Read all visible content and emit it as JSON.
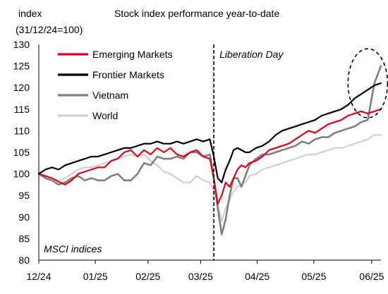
{
  "chart_data": {
    "type": "line",
    "title": "Stock index performance year-to-date",
    "ylabel_line1": "index",
    "ylabel_line2": "(31/12/24=100)",
    "ylim": [
      80,
      130
    ],
    "yticks": [
      80,
      85,
      90,
      95,
      100,
      105,
      110,
      115,
      120,
      125,
      130
    ],
    "xlim": [
      0,
      26
    ],
    "x_tick_labels": [
      {
        "x": 0,
        "label": "12/24"
      },
      {
        "x": 4.3,
        "label": "01/25"
      },
      {
        "x": 8.3,
        "label": "02/25"
      },
      {
        "x": 12.3,
        "label": "03/25"
      },
      {
        "x": 16.6,
        "label": "04/25"
      },
      {
        "x": 20.9,
        "label": "05/25"
      },
      {
        "x": 25.3,
        "label": "06/25"
      }
    ],
    "event_line": {
      "x": 13.3,
      "label": "Liberation Day"
    },
    "footnote": "MSCI indices",
    "highlight": {
      "cx": 25.0,
      "cy": 121,
      "rx": 1.5,
      "ry": 8
    },
    "legend_placement": "top-left",
    "grid": false,
    "series": [
      {
        "name": "Emerging Markets",
        "color": "#e60012",
        "width": 2.2,
        "x": [
          0,
          0.5,
          1,
          1.5,
          2,
          2.5,
          3,
          3.5,
          4,
          4.5,
          5,
          5.5,
          6,
          6.5,
          7,
          7.5,
          8,
          8.5,
          9,
          9.5,
          10,
          10.5,
          11,
          11.5,
          12,
          12.5,
          13,
          13.3,
          13.6,
          13.9,
          14.2,
          14.5,
          14.8,
          15.1,
          15.4,
          15.7,
          16,
          16.5,
          17,
          17.5,
          18,
          18.5,
          19,
          19.5,
          20,
          20.5,
          21,
          21.5,
          22,
          22.5,
          23,
          23.5,
          24,
          24.5,
          25,
          25.5,
          26
        ],
        "y": [
          100,
          99.5,
          99,
          98.2,
          97.5,
          98.5,
          100,
          100.5,
          101,
          101.5,
          101.5,
          103,
          103.5,
          105,
          105.5,
          104,
          105.5,
          104.5,
          106,
          105,
          106,
          104.5,
          104,
          105,
          105.5,
          104,
          103.5,
          99,
          93,
          95,
          98,
          97,
          99,
          101,
          102,
          101.5,
          102.5,
          103,
          104,
          105.5,
          106,
          106.5,
          107,
          108,
          109,
          110,
          109.5,
          110.5,
          111.5,
          112,
          112.5,
          113.5,
          114,
          114.5,
          114,
          114.5,
          115
        ]
      },
      {
        "name": "Frontier Markets",
        "color": "#000000",
        "width": 2.2,
        "x": [
          0,
          0.5,
          1,
          1.5,
          2,
          2.5,
          3,
          3.5,
          4,
          4.5,
          5,
          5.5,
          6,
          6.5,
          7,
          7.5,
          8,
          8.5,
          9,
          9.5,
          10,
          10.5,
          11,
          11.5,
          12,
          12.5,
          13,
          13.3,
          13.6,
          13.9,
          14.2,
          14.5,
          14.8,
          15.1,
          15.4,
          15.7,
          16,
          16.5,
          17,
          17.5,
          18,
          18.5,
          19,
          19.5,
          20,
          20.5,
          21,
          21.5,
          22,
          22.5,
          23,
          23.5,
          24,
          24.5,
          25,
          25.5,
          26
        ],
        "y": [
          100,
          101,
          101.5,
          101,
          102,
          102.5,
          103,
          103.5,
          104,
          104,
          104.5,
          105,
          105.5,
          106,
          106,
          106.5,
          107,
          107,
          107.5,
          107,
          107,
          107.5,
          107,
          107.5,
          108,
          107.5,
          108,
          104,
          99,
          98,
          101,
          103,
          105.5,
          106,
          105.5,
          105,
          105,
          106,
          106.5,
          107.5,
          109,
          110,
          110.5,
          111,
          111.5,
          112,
          112.5,
          113.5,
          114,
          114.5,
          115,
          116,
          117.5,
          118.5,
          119.5,
          120.5,
          121
        ]
      },
      {
        "name": "Vietnam",
        "color": "#7f7f7f",
        "width": 2.6,
        "x": [
          0,
          0.5,
          1,
          1.5,
          2,
          2.5,
          3,
          3.5,
          4,
          4.5,
          5,
          5.5,
          6,
          6.5,
          7,
          7.5,
          8,
          8.5,
          9,
          9.5,
          10,
          10.5,
          11,
          11.5,
          12,
          12.5,
          13,
          13.3,
          13.6,
          13.9,
          14.2,
          14.5,
          14.8,
          15.1,
          15.4,
          15.7,
          16,
          16.5,
          17,
          17.5,
          18,
          18.5,
          19,
          19.5,
          20,
          20.5,
          21,
          21.5,
          22,
          22.5,
          23,
          23.5,
          24,
          24.5,
          25,
          25.5,
          26
        ],
        "y": [
          100,
          99,
          98.5,
          97.5,
          98,
          99,
          99.5,
          98.5,
          99,
          98.5,
          98.5,
          99.5,
          100,
          98.5,
          98.5,
          100,
          102.5,
          102,
          104,
          103.5,
          103.5,
          104,
          103.5,
          105,
          105,
          104,
          104.5,
          99,
          92,
          86,
          89.5,
          95,
          99,
          99,
          97,
          99.5,
          102,
          103.5,
          104.5,
          104.5,
          105,
          105.5,
          106,
          106.5,
          107.5,
          107,
          108,
          108.5,
          108.5,
          109.5,
          110,
          110.5,
          111,
          112,
          112.5,
          121,
          125
        ]
      },
      {
        "name": "World",
        "color": "#d0d0d0",
        "width": 2.2,
        "x": [
          0,
          0.5,
          1,
          1.5,
          2,
          2.5,
          3,
          3.5,
          4,
          4.5,
          5,
          5.5,
          6,
          6.5,
          7,
          7.5,
          8,
          8.5,
          9,
          9.5,
          10,
          10.5,
          11,
          11.5,
          12,
          12.5,
          13,
          13.3,
          13.6,
          13.9,
          14.2,
          14.5,
          14.8,
          15.1,
          15.4,
          15.7,
          16,
          16.5,
          17,
          17.5,
          18,
          18.5,
          19,
          19.5,
          20,
          20.5,
          21,
          21.5,
          22,
          22.5,
          23,
          23.5,
          24,
          24.5,
          25,
          25.5,
          26
        ],
        "y": [
          100,
          99.5,
          99,
          98.5,
          99,
          100,
          101,
          101.5,
          101.5,
          102,
          102.5,
          103,
          103.5,
          104,
          104.5,
          104,
          104.5,
          103,
          102,
          100.5,
          100,
          99,
          98,
          98,
          99.5,
          98.5,
          98,
          96,
          93,
          89,
          92,
          94,
          96,
          97,
          97.5,
          98,
          99.5,
          100,
          101,
          101.5,
          102,
          102.5,
          103,
          103.5,
          104,
          104.5,
          104.5,
          105,
          105.5,
          106,
          106,
          106.5,
          107,
          107.5,
          108,
          109,
          109
        ]
      }
    ]
  }
}
